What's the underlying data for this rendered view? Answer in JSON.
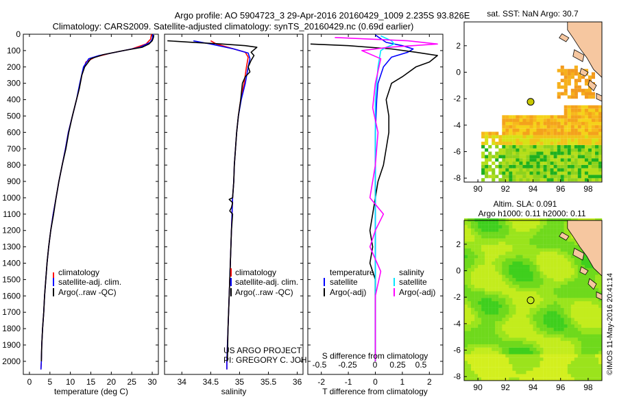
{
  "header": {
    "title_line1": "Argo profile: AO 5904723_3 29-Apr-2016 20160429_1009 2.235S 93.826E",
    "title_line2": "Climatology: CARS2009. Satellite-adjusted climatology: synTS_20160429.nc (0.69d earlier)"
  },
  "colors": {
    "climatology": "#ff0000",
    "satellite": "#0000ff",
    "argo": "#000000",
    "sal_satellite": "#00e5ff",
    "sal_argo": "#ff00ff",
    "land": "#f6c7a0"
  },
  "chart_data": [
    {
      "id": "temperature",
      "type": "line",
      "xlabel": "temperature (deg C)",
      "ylabel": "",
      "xlim": [
        -1.5,
        31.5
      ],
      "ylim": [
        2080,
        0
      ],
      "xticks": [
        0,
        5,
        10,
        15,
        20,
        25,
        30
      ],
      "yticks": [
        0,
        100,
        200,
        300,
        400,
        500,
        600,
        700,
        800,
        900,
        1000,
        1100,
        1200,
        1300,
        1400,
        1500,
        1600,
        1700,
        1800,
        1900,
        2000
      ],
      "legend": [
        "climatology",
        "satellite-adj. clim.",
        "Argo(..raw -QC)"
      ],
      "series": [
        {
          "name": "climatology",
          "color": "#ff0000",
          "points": [
            [
              29.8,
              0
            ],
            [
              29.6,
              30
            ],
            [
              28.5,
              60
            ],
            [
              25,
              90
            ],
            [
              20,
              115
            ],
            [
              16,
              140
            ],
            [
              13.8,
              170
            ],
            [
              12.8,
              250
            ],
            [
              12,
              350
            ],
            [
              10.5,
              500
            ],
            [
              9.5,
              600
            ],
            [
              8.8,
              700
            ],
            [
              8,
              800
            ],
            [
              7.2,
              900
            ],
            [
              6.5,
              1000
            ],
            [
              5.8,
              1100
            ],
            [
              5.2,
              1200
            ],
            [
              4.7,
              1300
            ],
            [
              4.3,
              1400
            ],
            [
              4,
              1500
            ],
            [
              3.7,
              1600
            ],
            [
              3.5,
              1700
            ],
            [
              3.2,
              1800
            ],
            [
              3,
              1900
            ],
            [
              2.9,
              2000
            ],
            [
              2.8,
              2050
            ]
          ]
        },
        {
          "name": "satellite-adj. clim.",
          "color": "#0000ff",
          "points": [
            [
              30.2,
              0
            ],
            [
              30,
              30
            ],
            [
              29.5,
              50
            ],
            [
              27,
              80
            ],
            [
              22,
              105
            ],
            [
              17,
              130
            ],
            [
              14.5,
              150
            ],
            [
              13.2,
              200
            ],
            [
              12.3,
              300
            ],
            [
              11.5,
              400
            ],
            [
              10.5,
              500
            ],
            [
              9.5,
              600
            ],
            [
              8.8,
              700
            ],
            [
              8,
              800
            ],
            [
              7.2,
              900
            ],
            [
              6.5,
              1000
            ],
            [
              5.8,
              1100
            ],
            [
              5.2,
              1200
            ],
            [
              4.7,
              1300
            ],
            [
              4.3,
              1400
            ],
            [
              4,
              1500
            ],
            [
              3.7,
              1600
            ],
            [
              3.5,
              1700
            ],
            [
              3.2,
              1800
            ],
            [
              3,
              1900
            ],
            [
              2.9,
              2000
            ],
            [
              2.8,
              2050
            ]
          ]
        },
        {
          "name": "Argo(..raw -QC)",
          "color": "#000000",
          "points": [
            [
              30.4,
              5
            ],
            [
              30.3,
              20
            ],
            [
              30,
              40
            ],
            [
              29.2,
              60
            ],
            [
              27.5,
              80
            ],
            [
              23,
              100
            ],
            [
              18,
              125
            ],
            [
              15,
              150
            ],
            [
              13.5,
              200
            ],
            [
              12.8,
              250
            ],
            [
              12.2,
              330
            ],
            [
              11.5,
              400
            ],
            [
              10.5,
              500
            ],
            [
              9.6,
              600
            ],
            [
              8.9,
              700
            ],
            [
              8,
              800
            ],
            [
              7.2,
              900
            ],
            [
              6.5,
              1000
            ],
            [
              5.9,
              1100
            ],
            [
              5.2,
              1200
            ],
            [
              4.7,
              1300
            ],
            [
              4.3,
              1400
            ],
            [
              4,
              1500
            ],
            [
              3.7,
              1600
            ],
            [
              3.5,
              1700
            ],
            [
              3.2,
              1800
            ],
            [
              3,
              1900
            ],
            [
              2.9,
              2000
            ]
          ]
        }
      ]
    },
    {
      "id": "salinity",
      "type": "line",
      "xlabel": "salinity",
      "ylabel": "",
      "xlim": [
        33.7,
        36.1
      ],
      "ylim": [
        2080,
        0
      ],
      "xticks": [
        34,
        34.5,
        35,
        35.5,
        36
      ],
      "xtick_labels": [
        "34",
        "34.5",
        "35",
        "35.5",
        "36"
      ],
      "legend": [
        "climatology",
        "satellite-adj. clim.",
        "Argo(..raw -QC)"
      ],
      "annotations": [
        "US ARGO PROJECT",
        "PI: GREGORY C. JOHNSON"
      ],
      "series": [
        {
          "name": "climatology",
          "color": "#ff0000",
          "points": [
            [
              34.5,
              40
            ],
            [
              34.6,
              60
            ],
            [
              34.85,
              85
            ],
            [
              35.1,
              110
            ],
            [
              35.15,
              140
            ],
            [
              35.12,
              200
            ],
            [
              35.08,
              300
            ],
            [
              35.02,
              400
            ],
            [
              34.98,
              500
            ],
            [
              34.95,
              600
            ],
            [
              34.93,
              700
            ],
            [
              34.91,
              800
            ],
            [
              34.9,
              900
            ],
            [
              34.88,
              1000
            ],
            [
              34.86,
              1200
            ],
            [
              34.84,
              1400
            ],
            [
              34.82,
              1600
            ],
            [
              34.8,
              1800
            ],
            [
              34.78,
              2000
            ],
            [
              34.78,
              2050
            ]
          ]
        },
        {
          "name": "satellite-adj. clim.",
          "color": "#0000ff",
          "points": [
            [
              34.2,
              40
            ],
            [
              34.5,
              60
            ],
            [
              34.9,
              90
            ],
            [
              35.15,
              115
            ],
            [
              35.18,
              150
            ],
            [
              35.15,
              200
            ],
            [
              35.1,
              300
            ],
            [
              35.03,
              400
            ],
            [
              34.98,
              500
            ],
            [
              34.95,
              600
            ],
            [
              34.93,
              700
            ],
            [
              34.91,
              800
            ],
            [
              34.9,
              900
            ],
            [
              34.88,
              1000
            ],
            [
              34.86,
              1200
            ],
            [
              34.84,
              1400
            ],
            [
              34.82,
              1600
            ],
            [
              34.8,
              1800
            ],
            [
              34.78,
              2000
            ],
            [
              34.78,
              2050
            ]
          ]
        },
        {
          "name": "Argo(..raw -QC)",
          "color": "#000000",
          "points": [
            [
              33.75,
              40
            ],
            [
              34.2,
              50
            ],
            [
              34.7,
              60
            ],
            [
              35.1,
              70
            ],
            [
              35.3,
              80
            ],
            [
              35.25,
              95
            ],
            [
              35.2,
              110
            ],
            [
              35.25,
              130
            ],
            [
              35.2,
              160
            ],
            [
              35.15,
              200
            ],
            [
              35.18,
              230
            ],
            [
              35.1,
              260
            ],
            [
              35.05,
              300
            ],
            [
              35.02,
              400
            ],
            [
              34.98,
              500
            ],
            [
              34.95,
              600
            ],
            [
              34.93,
              700
            ],
            [
              34.91,
              800
            ],
            [
              34.9,
              900
            ],
            [
              34.88,
              1000
            ],
            [
              34.82,
              1010
            ],
            [
              34.88,
              1030
            ],
            [
              34.86,
              1060
            ],
            [
              34.83,
              1080
            ],
            [
              34.88,
              1100
            ],
            [
              34.86,
              1200
            ],
            [
              34.84,
              1400
            ],
            [
              34.82,
              1600
            ],
            [
              34.8,
              1800
            ],
            [
              34.79,
              2000
            ]
          ]
        }
      ]
    },
    {
      "id": "difference",
      "type": "line",
      "xlabel": "T difference from climatology",
      "xlabel_top": "S difference from climatology",
      "xlim": [
        -2.5,
        2.5
      ],
      "ylim": [
        2080,
        0
      ],
      "xticks": [
        -2,
        -1,
        0,
        1,
        2
      ],
      "s_ticks": [
        "-0.5",
        "-0.25",
        "0",
        "0.25",
        "0.5"
      ],
      "legend_groups": [
        {
          "title": "temperature",
          "items": [
            "satellite",
            "Argo(-adj)"
          ]
        },
        {
          "title": "salinity",
          "items": [
            "satellite",
            "Argo(-adj)"
          ]
        }
      ],
      "series": [
        {
          "name": "temperature satellite",
          "color": "#0000ff",
          "points": [
            [
              0,
              5
            ],
            [
              0.4,
              50
            ],
            [
              1,
              70
            ],
            [
              1.4,
              90
            ],
            [
              1.2,
              110
            ],
            [
              0.6,
              140
            ],
            [
              0.3,
              200
            ],
            [
              0.1,
              300
            ],
            [
              0.05,
              400
            ],
            [
              0,
              600
            ],
            [
              0,
              2000
            ]
          ]
        },
        {
          "name": "temperature Argo(-adj)",
          "color": "#000000",
          "points": [
            [
              -2.4,
              60
            ],
            [
              -1,
              70
            ],
            [
              0.6,
              90
            ],
            [
              1.5,
              110
            ],
            [
              2.3,
              130
            ],
            [
              2,
              170
            ],
            [
              1.5,
              200
            ],
            [
              1,
              260
            ],
            [
              0.6,
              300
            ],
            [
              0.4,
              400
            ],
            [
              0.5,
              500
            ],
            [
              0.5,
              600
            ],
            [
              0.4,
              700
            ],
            [
              0.3,
              800
            ],
            [
              0.1,
              900
            ],
            [
              0,
              1000
            ],
            [
              -0.1,
              1100
            ],
            [
              -0.2,
              1200
            ],
            [
              -0.1,
              1300
            ],
            [
              -0.2,
              1400
            ],
            [
              0,
              1500
            ],
            [
              0,
              2000
            ]
          ]
        },
        {
          "name": "salinity satellite",
          "color": "#00e5ff",
          "points": [
            [
              0.2,
              10
            ],
            [
              0.6,
              40
            ],
            [
              0.7,
              60
            ],
            [
              0.4,
              80
            ],
            [
              0.2,
              100
            ],
            [
              0.1,
              200
            ],
            [
              0,
              400
            ],
            [
              0,
              800
            ],
            [
              0,
              2000
            ]
          ]
        },
        {
          "name": "salinity Argo(-adj)",
          "color": "#ff00ff",
          "points": [
            [
              -1.5,
              20
            ],
            [
              1.2,
              40
            ],
            [
              2.3,
              60
            ],
            [
              0.5,
              80
            ],
            [
              -0.5,
              100
            ],
            [
              0.2,
              150
            ],
            [
              0,
              300
            ],
            [
              -0.1,
              450
            ],
            [
              0.1,
              600
            ],
            [
              0,
              800
            ],
            [
              -0.2,
              1000
            ],
            [
              0.3,
              1100
            ],
            [
              0,
              1200
            ],
            [
              -0.2,
              1300
            ],
            [
              0.2,
              1450
            ],
            [
              0,
              1600
            ],
            [
              0,
              2000
            ]
          ]
        }
      ]
    },
    {
      "id": "sst_map",
      "type": "heatmap",
      "title": "sat. SST: NaN Argo: 30.7",
      "xlim": [
        89,
        99
      ],
      "ylim": [
        -8.3,
        3.8
      ],
      "xticks": [
        90,
        92,
        94,
        96,
        98
      ],
      "yticks": [
        2,
        0,
        -2,
        -4,
        -6,
        -8
      ],
      "argo_position": [
        93.826,
        -2.235
      ]
    },
    {
      "id": "sla_map",
      "type": "heatmap",
      "title_line1": "Altim. SLA: 0.091",
      "title_line2": "Argo h1000: 0.11 h2000: 0.11",
      "xlim": [
        89,
        99
      ],
      "ylim": [
        -8.3,
        3.8
      ],
      "xticks": [
        90,
        92,
        94,
        96,
        98
      ],
      "yticks": [
        2,
        0,
        -2,
        -4,
        -6,
        -8
      ],
      "argo_position": [
        93.826,
        -2.235
      ]
    }
  ],
  "footer": {
    "stamp": "©IMOS 11-May-2016 20:41:14"
  }
}
